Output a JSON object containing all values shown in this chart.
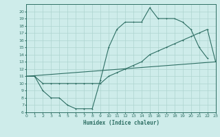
{
  "xlabel": "Humidex (Indice chaleur)",
  "xlim": [
    0,
    23
  ],
  "ylim": [
    6,
    21
  ],
  "xticks": [
    0,
    1,
    2,
    3,
    4,
    5,
    6,
    7,
    8,
    9,
    10,
    11,
    12,
    13,
    14,
    15,
    16,
    17,
    18,
    19,
    20,
    21,
    22,
    23
  ],
  "yticks": [
    6,
    7,
    8,
    9,
    10,
    11,
    12,
    13,
    14,
    15,
    16,
    17,
    18,
    19,
    20
  ],
  "bg_color": "#ceecea",
  "line_color": "#2d6e63",
  "grid_color": "#aed4cf",
  "line1_x": [
    0,
    1,
    2,
    3,
    4,
    5,
    6,
    7,
    8,
    9,
    10,
    11,
    12,
    13,
    14,
    15,
    16,
    17,
    18,
    19,
    20,
    21,
    22
  ],
  "line1_y": [
    11,
    11,
    9,
    8,
    8,
    7,
    6.5,
    6.5,
    6.5,
    10.5,
    15,
    17.5,
    18.5,
    18.5,
    18.5,
    20.5,
    19,
    19,
    19,
    18.5,
    17.5,
    15,
    13.5
  ],
  "line2_x": [
    0,
    1,
    2,
    3,
    4,
    5,
    6,
    7,
    8,
    9,
    10,
    11,
    12,
    13,
    14,
    15,
    16,
    17,
    18,
    19,
    20,
    21,
    22,
    23
  ],
  "line2_y": [
    11,
    11,
    10,
    10,
    10,
    10,
    10,
    10,
    10,
    10,
    11,
    11.5,
    12,
    12.5,
    13,
    14,
    14.5,
    15,
    15.5,
    16,
    16.5,
    17,
    17.5,
    13
  ],
  "line3_x": [
    0,
    23
  ],
  "line3_y": [
    11,
    13
  ]
}
